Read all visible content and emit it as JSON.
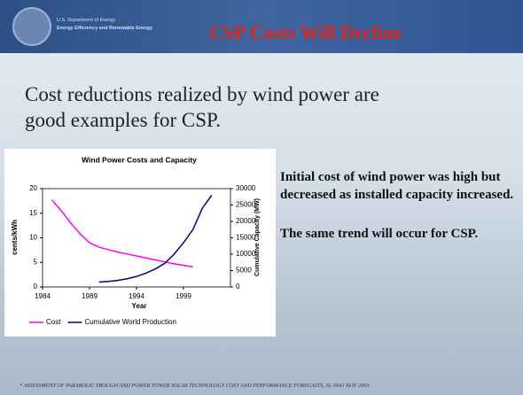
{
  "header": {
    "org_line1": "U.S. Department of Energy",
    "org_line2": "Energy Efficiency and Renewable Energy",
    "title": "CSP Costs Will Decline"
  },
  "body": {
    "lead": "Cost reductions realized by wind power are good examples for CSP.",
    "points": [
      "Initial cost of wind power was high but decreased as installed capacity increased.",
      "The same trend will occur for CSP."
    ]
  },
  "footnote": "* ASSESSMENT OF PARABOLIC TROUGH  AND POWER TOWER SOLAR TECHNOLOGY COST AND PERFORMANCE FORECASTS, SL-5641 MAY 2003.",
  "chart_data": {
    "type": "line",
    "title": "Wind Power Costs and Capacity",
    "x_label": "Year",
    "y_label": "cents/kWh",
    "y2_label": "Cumulative Capacity (MW)",
    "x": [
      1985,
      1986,
      1987,
      1988,
      1989,
      1990,
      1991,
      1992,
      1993,
      1994,
      1995,
      1996,
      1997,
      1998,
      1999,
      2000,
      2001,
      2002
    ],
    "series": [
      {
        "name": "Cost",
        "color": "#ff00ff",
        "values": [
          17.7,
          15.5,
          13,
          10.8,
          9,
          8.1,
          7.6,
          7.1,
          6.7,
          6.3,
          5.9,
          5.5,
          5.1,
          4.7,
          4.4,
          4.1,
          null,
          null
        ]
      },
      {
        "name": "Cumulative World Production",
        "color": "#000080",
        "axis": "y2",
        "values": [
          null,
          null,
          null,
          null,
          null,
          1500,
          1700,
          2000,
          2500,
          3200,
          4200,
          5500,
          7200,
          10000,
          13500,
          17500,
          24000,
          28000
        ]
      }
    ],
    "xlim": [
      1984,
      2004
    ],
    "xticks": [
      1984,
      1989,
      1994,
      1999
    ],
    "ylim": [
      0,
      20
    ],
    "yticks": [
      0,
      5,
      10,
      15,
      20
    ],
    "y2lim": [
      0,
      30000
    ],
    "y2ticks": [
      0,
      5000,
      10000,
      15000,
      20000,
      25000,
      30000
    ],
    "legend": "bottom"
  }
}
